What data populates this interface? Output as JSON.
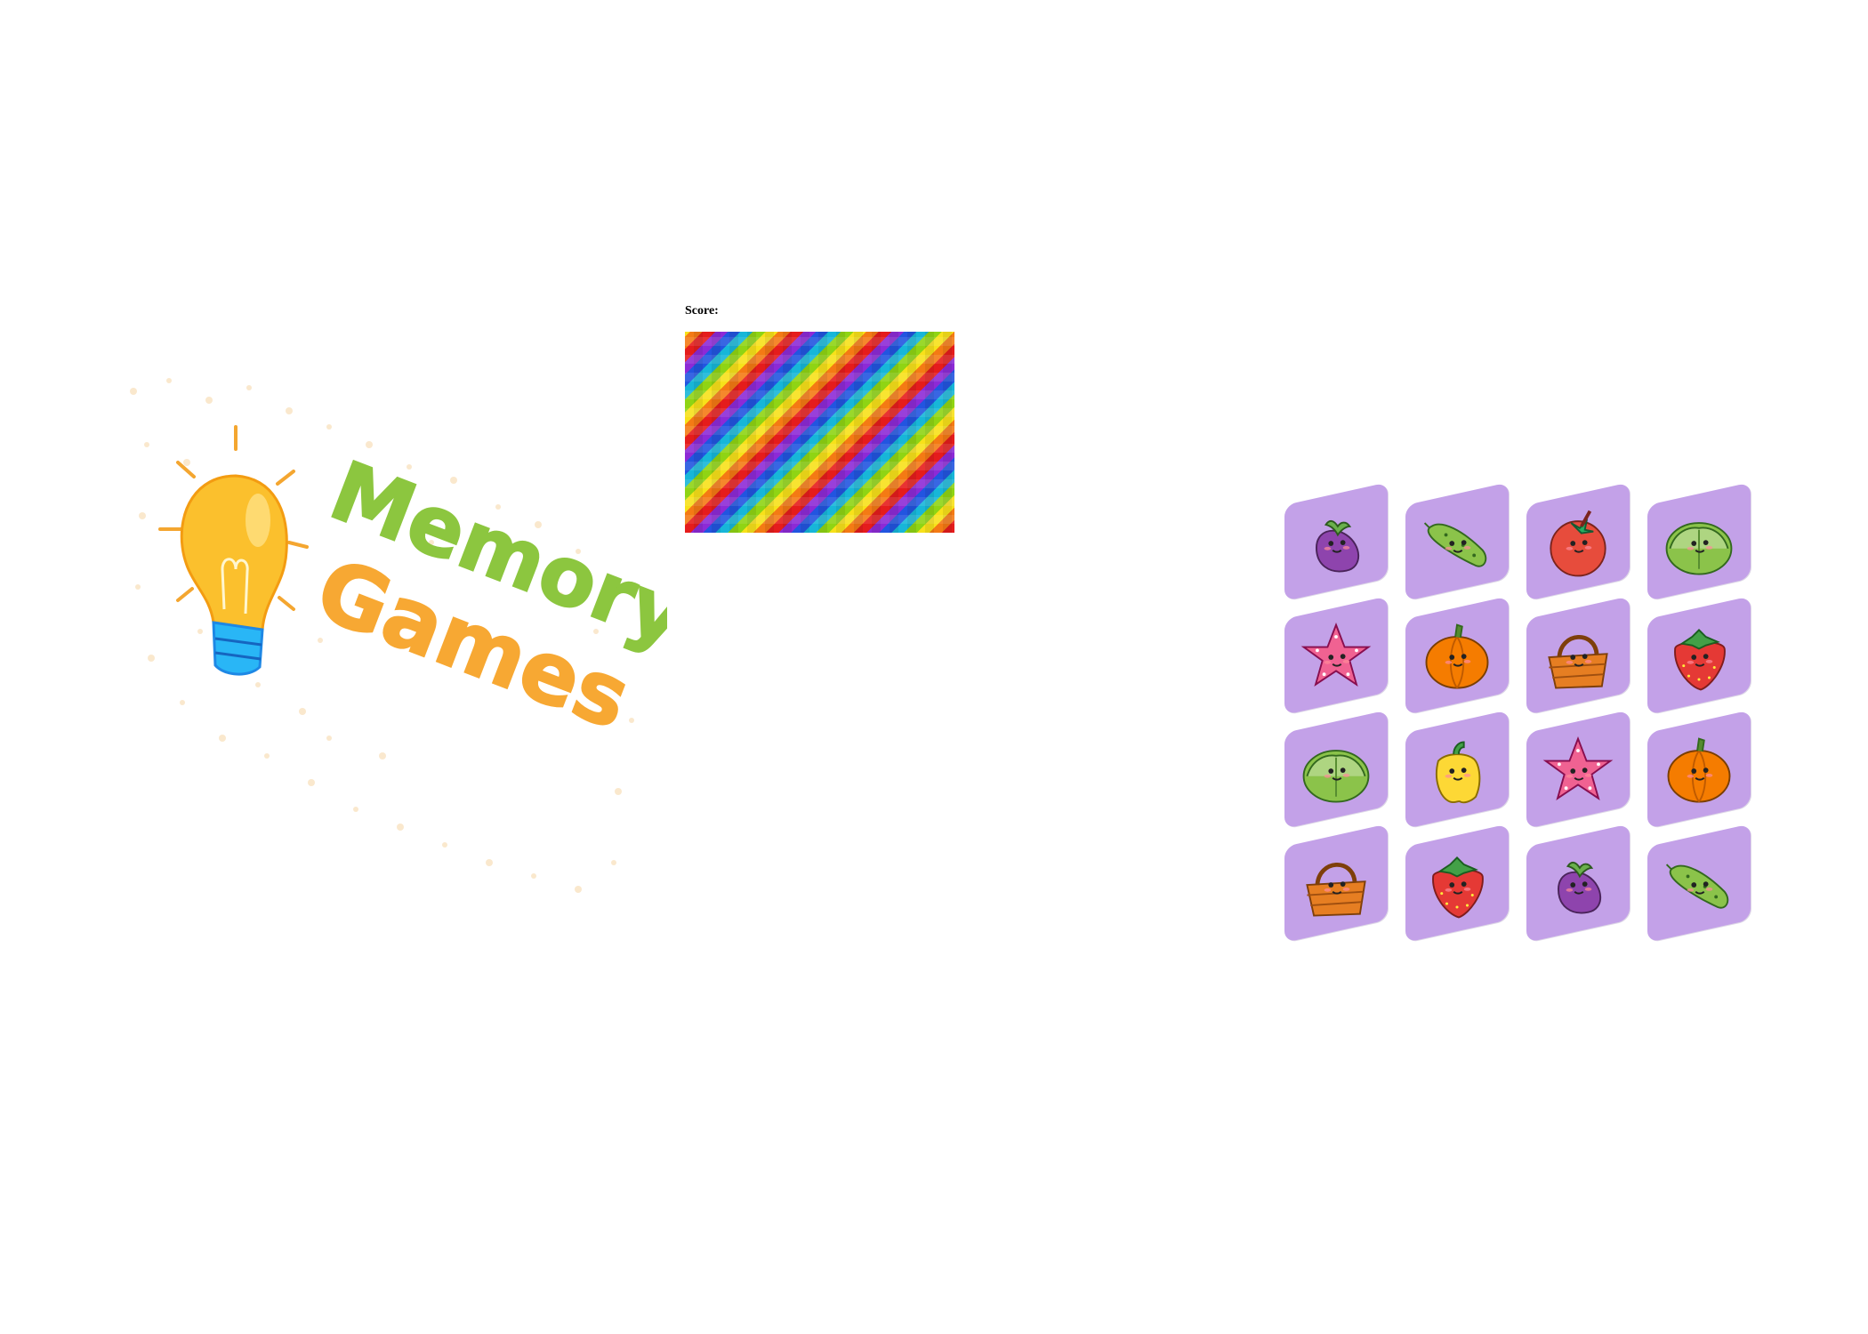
{
  "title": {
    "line1": "Memory",
    "line2": "Games",
    "line1_color": "#8cc63f",
    "line2_color": "#f7a833"
  },
  "score": {
    "label": "Score:"
  },
  "board": {
    "pattern": "rainbow-checker",
    "colors": [
      "#e51c1c",
      "#f47a14",
      "#f7e11a",
      "#8fd414",
      "#17b6d8",
      "#2255e0",
      "#8d2ad6"
    ]
  },
  "cards": {
    "back_color": "#c3a1e8",
    "rows": [
      [
        "eggplant",
        "cucumber",
        "tomato",
        "cabbage"
      ],
      [
        "starfish",
        "pumpkin",
        "basket",
        "strawberry"
      ],
      [
        "cabbage",
        "pepper",
        "starfish",
        "pumpkin"
      ],
      [
        "basket",
        "strawberry",
        "eggplant",
        "cucumber"
      ]
    ]
  }
}
